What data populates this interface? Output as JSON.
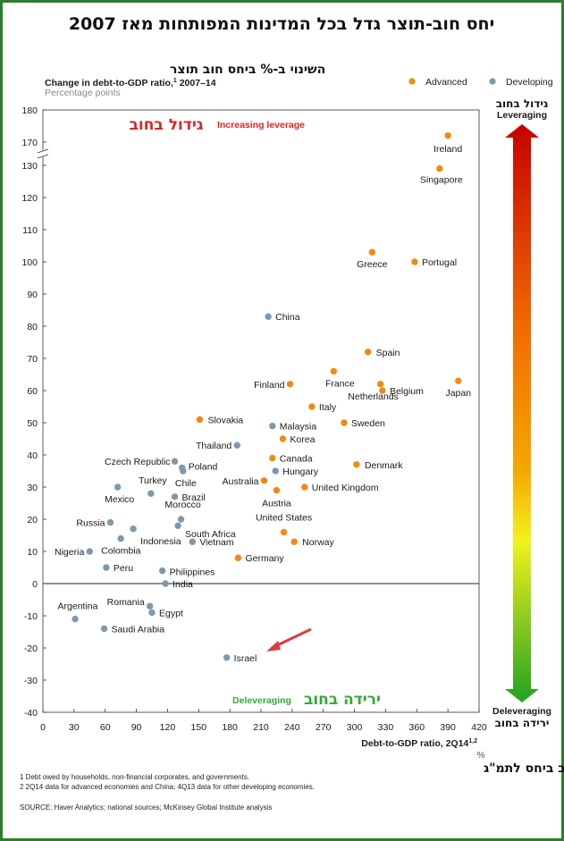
{
  "title": "יחס חוב-תוצר גדל בכל המדינות המפותחות מאז 2007",
  "subtitle_hebrew": "השינוי ב-% ביחס חוב תוצר",
  "ylabel": "Change in debt-to-GDP ratio,",
  "ylabel_sup": "1",
  "ylabel_years": " 2007–14",
  "yunits": "Percentage points",
  "xlabel": "Debt-to-GDP ratio, 2Q14",
  "xlabel_sup": "1,2",
  "xunits": "%",
  "xlabel_hebrew": "% חוב ביחס לתמ\"ג",
  "region_top_hebrew": "גידול בחוב",
  "region_top_english": "Increasing leverage",
  "region_bottom_hebrew": "ירידה בחוב",
  "region_bottom_english": "Deleveraging",
  "arrow_top_hebrew": "גידול בחוב",
  "arrow_top_english": "Leveraging",
  "arrow_bottom_english": "Deleveraging",
  "arrow_bottom_hebrew": "ירידה בחוב",
  "footnote1": "1  Debt owed by households, non-financial corporates, and governments.",
  "footnote2": "2  2Q14 data for advanced economies and China; 4Q13 data for other developing economies.",
  "source": "SOURCE:  Haver Analytics; national sources; McKinsey Global Institute analysis",
  "colors": {
    "advanced": "#f28a10",
    "developing": "#7f98aa",
    "region_top": "#e52222",
    "region_bottom": "#33aa33",
    "arrow_annotation": "#e03a3a",
    "frame": "#2e7d2e"
  },
  "chart_data": {
    "type": "scatter",
    "title": "",
    "xlabel": "Debt-to-GDP ratio, 2Q14",
    "ylabel": "Change in debt-to-GDP ratio, 2007–14",
    "xlim": [
      0,
      420
    ],
    "xticks": [
      0,
      30,
      60,
      90,
      120,
      150,
      180,
      210,
      240,
      270,
      300,
      330,
      360,
      390,
      420
    ],
    "ylim": [
      -40,
      180
    ],
    "yticks": [
      -40,
      -30,
      -20,
      -10,
      0,
      10,
      20,
      30,
      40,
      50,
      60,
      70,
      80,
      90,
      100,
      110,
      120,
      130,
      170,
      180
    ],
    "axis_break": "between 130 and 170",
    "grid": false,
    "legend_position": "top-right",
    "series": [
      {
        "name": "Advanced",
        "points": [
          {
            "label": "Ireland",
            "x": 390,
            "y": 172
          },
          {
            "label": "Singapore",
            "x": 382,
            "y": 129
          },
          {
            "label": "Greece",
            "x": 317,
            "y": 103
          },
          {
            "label": "Portugal",
            "x": 358,
            "y": 100
          },
          {
            "label": "Spain",
            "x": 313,
            "y": 72
          },
          {
            "label": "Netherlands",
            "x": 325,
            "y": 62
          },
          {
            "label": "France",
            "x": 280,
            "y": 66
          },
          {
            "label": "Finland",
            "x": 238,
            "y": 62
          },
          {
            "label": "Belgium",
            "x": 327,
            "y": 60
          },
          {
            "label": "Japan",
            "x": 400,
            "y": 63
          },
          {
            "label": "Italy",
            "x": 259,
            "y": 55
          },
          {
            "label": "Sweden",
            "x": 290,
            "y": 50
          },
          {
            "label": "Slovakia",
            "x": 151,
            "y": 51
          },
          {
            "label": "Korea",
            "x": 231,
            "y": 45
          },
          {
            "label": "Canada",
            "x": 221,
            "y": 39
          },
          {
            "label": "Denmark",
            "x": 302,
            "y": 37
          },
          {
            "label": "Australia",
            "x": 213,
            "y": 32
          },
          {
            "label": "Austria",
            "x": 225,
            "y": 29
          },
          {
            "label": "United Kingdom",
            "x": 252,
            "y": 30
          },
          {
            "label": "United States",
            "x": 232,
            "y": 16
          },
          {
            "label": "Norway",
            "x": 242,
            "y": 13
          },
          {
            "label": "Germany",
            "x": 188,
            "y": 8
          }
        ]
      },
      {
        "name": "Developing",
        "points": [
          {
            "label": "China",
            "x": 217,
            "y": 83
          },
          {
            "label": "Malaysia",
            "x": 221,
            "y": 49
          },
          {
            "label": "Thailand",
            "x": 187,
            "y": 43
          },
          {
            "label": "Czech Republic",
            "x": 127,
            "y": 38
          },
          {
            "label": "Poland",
            "x": 134,
            "y": 36
          },
          {
            "label": "Chile",
            "x": 135,
            "y": 35
          },
          {
            "label": "Hungary",
            "x": 224,
            "y": 35
          },
          {
            "label": "Mexico",
            "x": 72,
            "y": 30
          },
          {
            "label": "Turkey",
            "x": 104,
            "y": 28
          },
          {
            "label": "Brazil",
            "x": 127,
            "y": 27
          },
          {
            "label": "Morocco",
            "x": 133,
            "y": 20
          },
          {
            "label": "South Africa",
            "x": 130,
            "y": 18
          },
          {
            "label": "Russia",
            "x": 65,
            "y": 19
          },
          {
            "label": "Indonesia",
            "x": 87,
            "y": 17
          },
          {
            "label": "Colombia",
            "x": 75,
            "y": 14
          },
          {
            "label": "Vietnam",
            "x": 144,
            "y": 13
          },
          {
            "label": "Nigeria",
            "x": 45,
            "y": 10
          },
          {
            "label": "Peru",
            "x": 61,
            "y": 5
          },
          {
            "label": "Philippines",
            "x": 115,
            "y": 4
          },
          {
            "label": "India",
            "x": 118,
            "y": 0
          },
          {
            "label": "Argentina",
            "x": 31,
            "y": -11
          },
          {
            "label": "Romania",
            "x": 103,
            "y": -7
          },
          {
            "label": "Egypt",
            "x": 105,
            "y": -9
          },
          {
            "label": "Saudi Arabia",
            "x": 59,
            "y": -14
          },
          {
            "label": "Israel",
            "x": 177,
            "y": -23
          }
        ]
      }
    ]
  }
}
